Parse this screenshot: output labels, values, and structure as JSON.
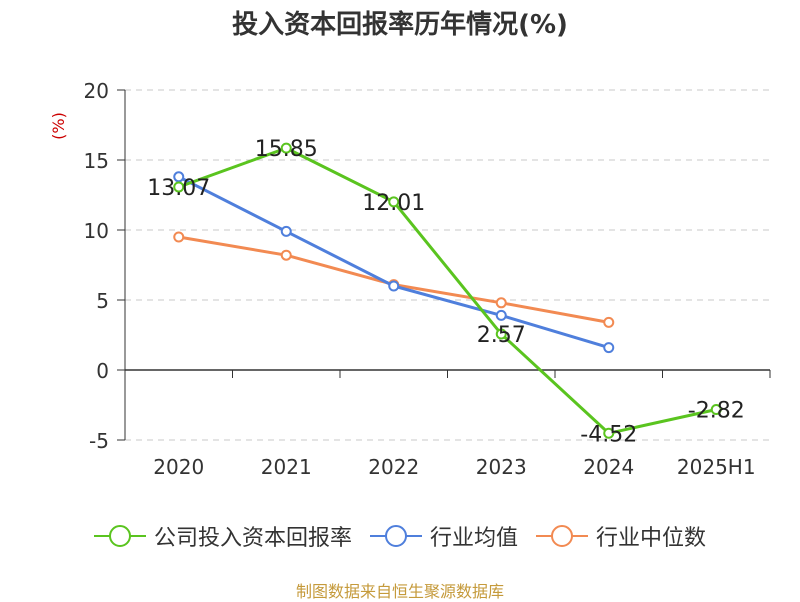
{
  "chart_data": {
    "type": "line",
    "title": "投入资本回报率历年情况(%)",
    "ylabel": "(%)",
    "categories": [
      "2020",
      "2021",
      "2022",
      "2023",
      "2024",
      "2025H1"
    ],
    "ylim": [
      -5,
      20
    ],
    "yticks": [
      20,
      15,
      10,
      5,
      0,
      -5
    ],
    "grid": true,
    "legend_position": "bottom",
    "series": [
      {
        "name": "公司投入资本回报率",
        "color": "#5ac41f",
        "values": [
          13.07,
          15.85,
          12.01,
          2.57,
          -4.52,
          -2.82
        ],
        "labels": [
          "13.07",
          "15.85",
          "12.01",
          "2.57",
          "-4.52",
          "-2.82"
        ]
      },
      {
        "name": "行业均值",
        "color": "#4f7fdc",
        "values": [
          13.8,
          9.9,
          6.0,
          3.9,
          1.6,
          null
        ]
      },
      {
        "name": "行业中位数",
        "color": "#f28a52",
        "values": [
          9.5,
          8.2,
          6.1,
          4.8,
          3.4,
          null
        ]
      }
    ]
  },
  "source": "制图数据来自恒生聚源数据库"
}
